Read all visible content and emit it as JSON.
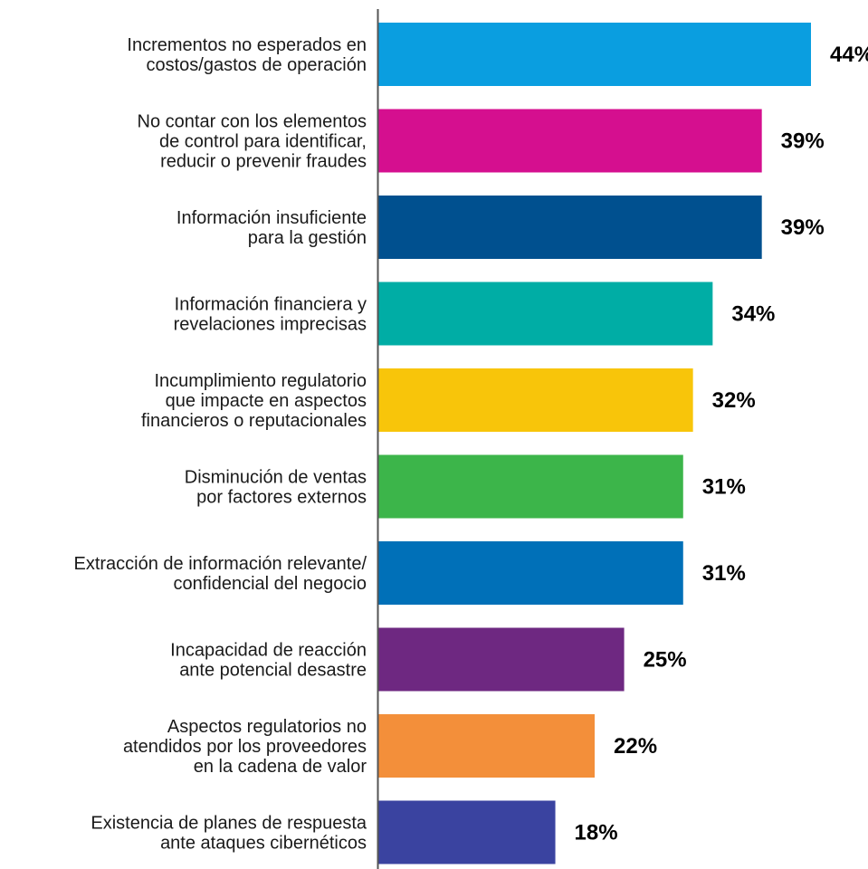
{
  "chart_data": {
    "type": "bar",
    "orientation": "horizontal",
    "title": "",
    "xlabel": "",
    "ylabel": "",
    "unit": "%",
    "xlim": [
      0,
      44
    ],
    "grid": false,
    "legend": "none",
    "categories": [
      [
        "Incrementos no esperados en",
        "costos/gastos de operación"
      ],
      [
        "No contar con los elementos",
        "de control para identificar,",
        "reducir o prevenir fraudes"
      ],
      [
        "Información insuficiente",
        "para la gestión"
      ],
      [
        "Información financiera y",
        "revelaciones imprecisas"
      ],
      [
        "Incumplimiento regulatorio",
        "que impacte en aspectos",
        "financieros o reputacionales"
      ],
      [
        "Disminución de ventas",
        "por factores externos"
      ],
      [
        "Extracción de información relevante/",
        "confidencial del negocio"
      ],
      [
        "Incapacidad de reacción",
        "ante potencial desastre"
      ],
      [
        "Aspectos regulatorios no",
        "atendidos por los proveedores",
        "en la cadena de valor"
      ],
      [
        "Existencia de planes de respuesta",
        "ante ataques cibernéticos"
      ]
    ],
    "values": [
      44,
      39,
      39,
      34,
      32,
      31,
      31,
      25,
      22,
      18
    ],
    "value_labels": [
      "44%",
      "39%",
      "39%",
      "34%",
      "32%",
      "31%",
      "31%",
      "25%",
      "22%",
      "18%"
    ],
    "colors": [
      "#0a9ee0",
      "#d50f8f",
      "#00508f",
      "#00ada5",
      "#f8c50a",
      "#3cb54a",
      "#0070b8",
      "#6e2881",
      "#f38f3a",
      "#3a43a0"
    ],
    "axis_color": "#555555"
  }
}
